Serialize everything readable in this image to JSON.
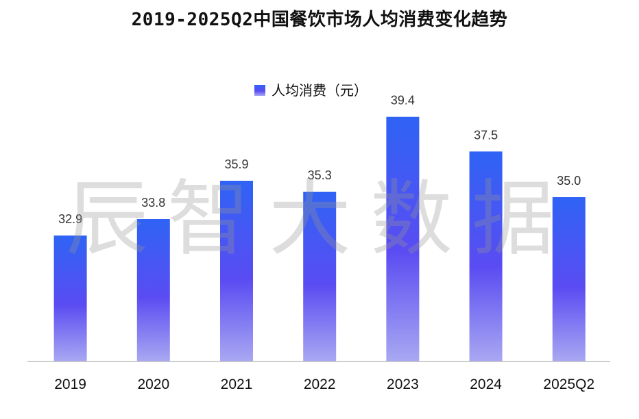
{
  "title": "2019-2025Q2中国餐饮市场人均消费变化趋势",
  "watermark": "辰智大数据",
  "colors": {
    "bar_top": "#2f63f5",
    "bar_mid": "#5a4cf2",
    "bar_bottom": "#a9a8f2",
    "axis": "#bdbdbd"
  },
  "chart_data": {
    "type": "bar",
    "categories": [
      "2019",
      "2020",
      "2021",
      "2022",
      "2023",
      "2024",
      "2025Q2"
    ],
    "series": [
      {
        "name": "人均消费（元）",
        "values": [
          32.9,
          33.8,
          35.9,
          35.3,
          39.4,
          37.5,
          35.0
        ],
        "labels": [
          "32.9",
          "33.8",
          "35.9",
          "35.3",
          "39.4",
          "37.5",
          "35.0"
        ]
      }
    ],
    "title": "2019-2025Q2中国餐饮市场人均消费变化趋势",
    "legend_position": "top-center",
    "grid": false,
    "ylim": [
      26,
      41
    ],
    "xlabel": "",
    "ylabel": ""
  }
}
